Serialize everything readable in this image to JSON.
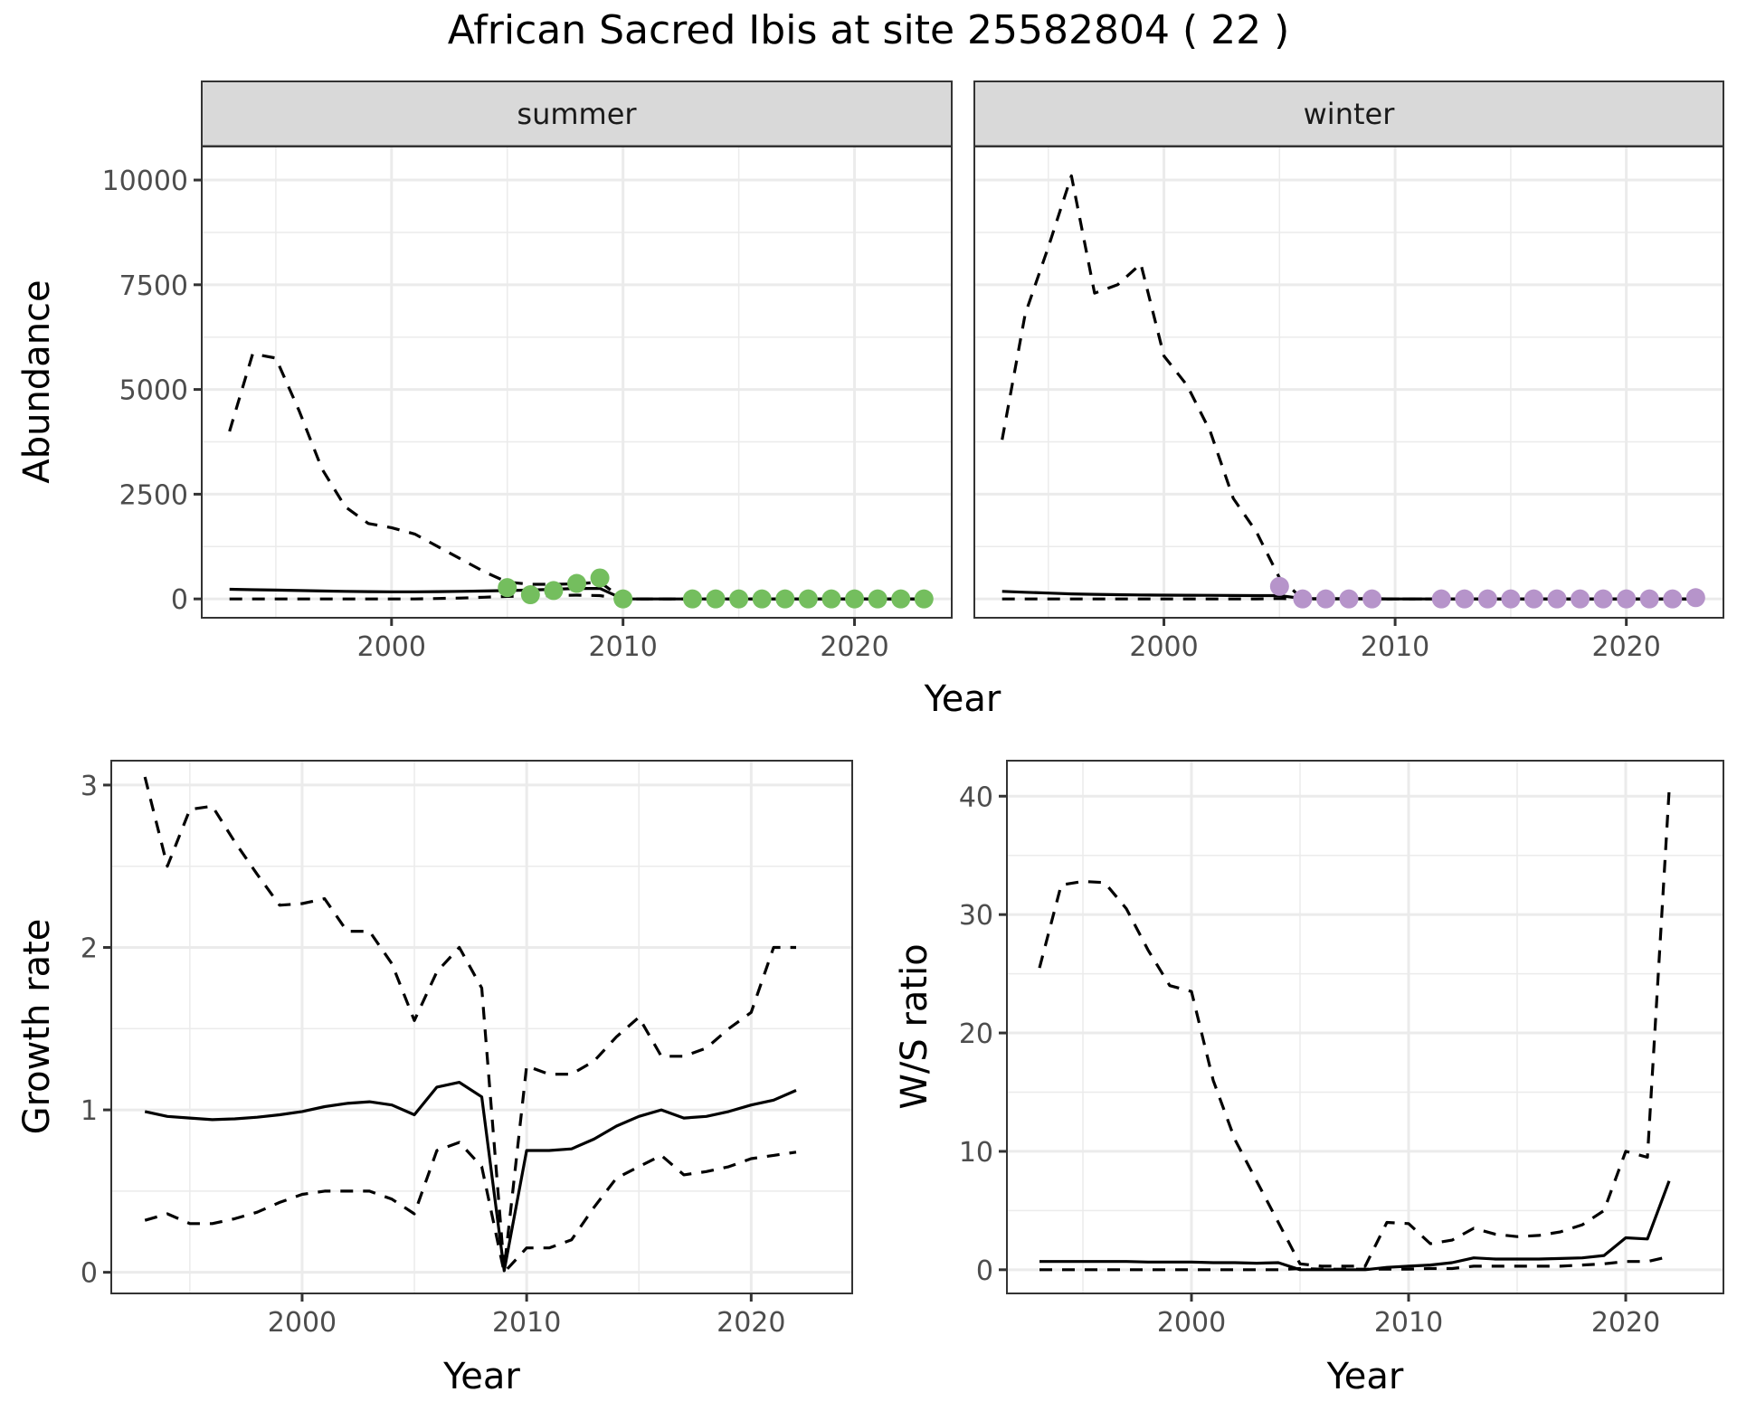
{
  "title": "African Sacred Ibis at site 25582804 ( 22 )",
  "colors": {
    "summer_points": "#74BE5E",
    "winter_points": "#B694CA",
    "lines": "#000000",
    "strip_bg": "#D9D9D9",
    "grid": "#EBEBEB",
    "tick_text": "#4D4D4D"
  },
  "chart_data": [
    {
      "type": "line",
      "panel": "abundance",
      "facets": [
        "summer",
        "winter"
      ],
      "xlabel": "Year",
      "ylabel": "Abundance",
      "xlim": [
        1991.8,
        2024.2
      ],
      "ylim": [
        -450,
        10800
      ],
      "xticks": [
        2000,
        2010,
        2020
      ],
      "yticks": [
        0,
        2500,
        5000,
        7500,
        10000
      ],
      "grid": true,
      "x": [
        1993,
        1994,
        1995,
        1996,
        1997,
        1998,
        1999,
        2000,
        2001,
        2002,
        2003,
        2004,
        2005,
        2006,
        2007,
        2008,
        2009,
        2010,
        2011,
        2012,
        2013,
        2014,
        2015,
        2016,
        2017,
        2018,
        2019,
        2020,
        2021,
        2022,
        2023
      ],
      "summer": {
        "series": [
          {
            "name": "upper",
            "style": "dashed",
            "values": [
              4000,
              5850,
              5750,
              4500,
              3100,
              2200,
              1800,
              1700,
              1550,
              1250,
              950,
              650,
              400,
              350,
              350,
              360,
              400,
              0,
              0,
              0,
              0,
              0,
              0,
              0,
              0,
              0,
              0,
              0,
              0,
              0,
              0
            ]
          },
          {
            "name": "median",
            "style": "solid",
            "values": [
              230,
              220,
              210,
              200,
              190,
              180,
              175,
              170,
              170,
              175,
              180,
              190,
              200,
              210,
              230,
              250,
              250,
              0,
              0,
              0,
              0,
              0,
              0,
              0,
              0,
              0,
              0,
              0,
              0,
              0,
              0
            ]
          },
          {
            "name": "lower",
            "style": "dashed",
            "values": [
              0,
              0,
              0,
              0,
              0,
              0,
              0,
              0,
              0,
              10,
              20,
              40,
              60,
              70,
              80,
              90,
              80,
              0,
              0,
              0,
              0,
              0,
              0,
              0,
              0,
              0,
              0,
              0,
              0,
              0,
              0
            ]
          }
        ],
        "points": {
          "x": [
            2005,
            2006,
            2007,
            2008,
            2009,
            2010,
            2013,
            2014,
            2015,
            2016,
            2017,
            2018,
            2019,
            2020,
            2021,
            2022,
            2023
          ],
          "y": [
            270,
            100,
            200,
            370,
            500,
            0,
            0,
            0,
            0,
            0,
            0,
            0,
            0,
            0,
            0,
            0,
            0
          ]
        }
      },
      "winter": {
        "series": [
          {
            "name": "upper",
            "style": "dashed",
            "values": [
              3800,
              6800,
              8400,
              10100,
              7300,
              7500,
              8000,
              5800,
              5100,
              4000,
              2400,
              1600,
              500,
              0,
              0,
              0,
              0,
              0,
              0,
              0,
              0,
              0,
              0,
              0,
              0,
              0,
              0,
              0,
              0,
              0,
              0
            ]
          },
          {
            "name": "median",
            "style": "solid",
            "values": [
              180,
              160,
              140,
              120,
              110,
              100,
              95,
              90,
              88,
              85,
              82,
              80,
              80,
              10,
              5,
              5,
              5,
              0,
              0,
              0,
              0,
              0,
              0,
              0,
              0,
              0,
              0,
              0,
              0,
              0,
              0
            ]
          },
          {
            "name": "lower",
            "style": "dashed",
            "values": [
              0,
              0,
              0,
              0,
              0,
              0,
              0,
              0,
              0,
              0,
              0,
              0,
              10,
              0,
              0,
              0,
              0,
              0,
              0,
              0,
              0,
              0,
              0,
              0,
              0,
              0,
              0,
              0,
              0,
              0,
              0
            ]
          }
        ],
        "points": {
          "x": [
            2005,
            2006,
            2007,
            2008,
            2009,
            2012,
            2013,
            2014,
            2015,
            2016,
            2017,
            2018,
            2019,
            2020,
            2021,
            2022,
            2023
          ],
          "y": [
            300,
            0,
            0,
            0,
            0,
            0,
            0,
            0,
            0,
            0,
            0,
            0,
            0,
            0,
            0,
            0,
            30
          ]
        }
      }
    },
    {
      "type": "line",
      "panel": "growth",
      "xlabel": "Year",
      "ylabel": "Growth rate",
      "xlim": [
        1991.5,
        2024.5
      ],
      "ylim": [
        -0.13,
        3.15
      ],
      "xticks": [
        2000,
        2010,
        2020
      ],
      "yticks": [
        0,
        1,
        2,
        3
      ],
      "grid": true,
      "x": [
        1993,
        1994,
        1995,
        1996,
        1997,
        1998,
        1999,
        2000,
        2001,
        2002,
        2003,
        2004,
        2005,
        2006,
        2007,
        2008,
        2009,
        2010,
        2011,
        2012,
        2013,
        2014,
        2015,
        2016,
        2017,
        2018,
        2019,
        2020,
        2021,
        2022
      ],
      "series": [
        {
          "name": "upper",
          "style": "dashed",
          "values": [
            3.05,
            2.5,
            2.85,
            2.87,
            2.65,
            2.45,
            2.26,
            2.27,
            2.3,
            2.1,
            2.1,
            1.9,
            1.55,
            1.85,
            2.0,
            1.75,
            0.02,
            1.27,
            1.22,
            1.22,
            1.3,
            1.45,
            1.57,
            1.33,
            1.33,
            1.38,
            1.5,
            1.6,
            2.0,
            2.0
          ]
        },
        {
          "name": "median",
          "style": "solid",
          "values": [
            0.99,
            0.96,
            0.95,
            0.94,
            0.945,
            0.955,
            0.97,
            0.99,
            1.02,
            1.04,
            1.05,
            1.03,
            0.97,
            1.14,
            1.17,
            1.08,
            0.01,
            0.75,
            0.75,
            0.76,
            0.82,
            0.9,
            0.96,
            1.0,
            0.95,
            0.96,
            0.99,
            1.03,
            1.06,
            1.12
          ]
        },
        {
          "name": "lower",
          "style": "dashed",
          "values": [
            0.32,
            0.36,
            0.3,
            0.3,
            0.33,
            0.37,
            0.43,
            0.48,
            0.5,
            0.5,
            0.5,
            0.45,
            0.36,
            0.75,
            0.8,
            0.65,
            0.0,
            0.15,
            0.15,
            0.2,
            0.4,
            0.58,
            0.65,
            0.72,
            0.6,
            0.62,
            0.65,
            0.7,
            0.72,
            0.74
          ]
        }
      ]
    },
    {
      "type": "line",
      "panel": "ws_ratio",
      "xlabel": "Year",
      "ylabel": "W/S ratio",
      "xlim": [
        1991.5,
        2024.5
      ],
      "ylim": [
        -2.0,
        43.0
      ],
      "xticks": [
        2000,
        2010,
        2020
      ],
      "yticks": [
        0,
        10,
        20,
        30,
        40
      ],
      "grid": true,
      "x": [
        1993,
        1994,
        1995,
        1996,
        1997,
        1998,
        1999,
        2000,
        2001,
        2002,
        2003,
        2004,
        2005,
        2006,
        2007,
        2008,
        2009,
        2010,
        2011,
        2012,
        2013,
        2014,
        2015,
        2016,
        2017,
        2018,
        2019,
        2020,
        2021,
        2022
      ],
      "series": [
        {
          "name": "upper",
          "style": "dashed",
          "values": [
            25.5,
            32.5,
            32.8,
            32.7,
            30.5,
            27.0,
            24.0,
            23.5,
            16.0,
            11.0,
            7.5,
            4.0,
            0.5,
            0.3,
            0.3,
            0.3,
            4.0,
            3.9,
            2.2,
            2.5,
            3.5,
            3.0,
            2.8,
            2.9,
            3.2,
            3.8,
            5.0,
            10.0,
            9.5,
            40.5
          ]
        },
        {
          "name": "median",
          "style": "solid",
          "values": [
            0.7,
            0.7,
            0.7,
            0.7,
            0.7,
            0.65,
            0.65,
            0.65,
            0.6,
            0.6,
            0.55,
            0.6,
            0.0,
            0.0,
            0.0,
            0.0,
            0.2,
            0.3,
            0.4,
            0.6,
            1.0,
            0.9,
            0.9,
            0.9,
            0.95,
            1.0,
            1.2,
            2.7,
            2.6,
            7.5
          ]
        },
        {
          "name": "lower",
          "style": "dashed",
          "values": [
            0,
            0,
            0,
            0,
            0,
            0,
            0,
            0,
            0,
            0,
            0,
            0,
            0.1,
            0.05,
            0.05,
            0.05,
            0.05,
            0.05,
            0.1,
            0.1,
            0.3,
            0.3,
            0.3,
            0.3,
            0.3,
            0.4,
            0.5,
            0.7,
            0.7,
            1.1
          ]
        }
      ]
    }
  ]
}
